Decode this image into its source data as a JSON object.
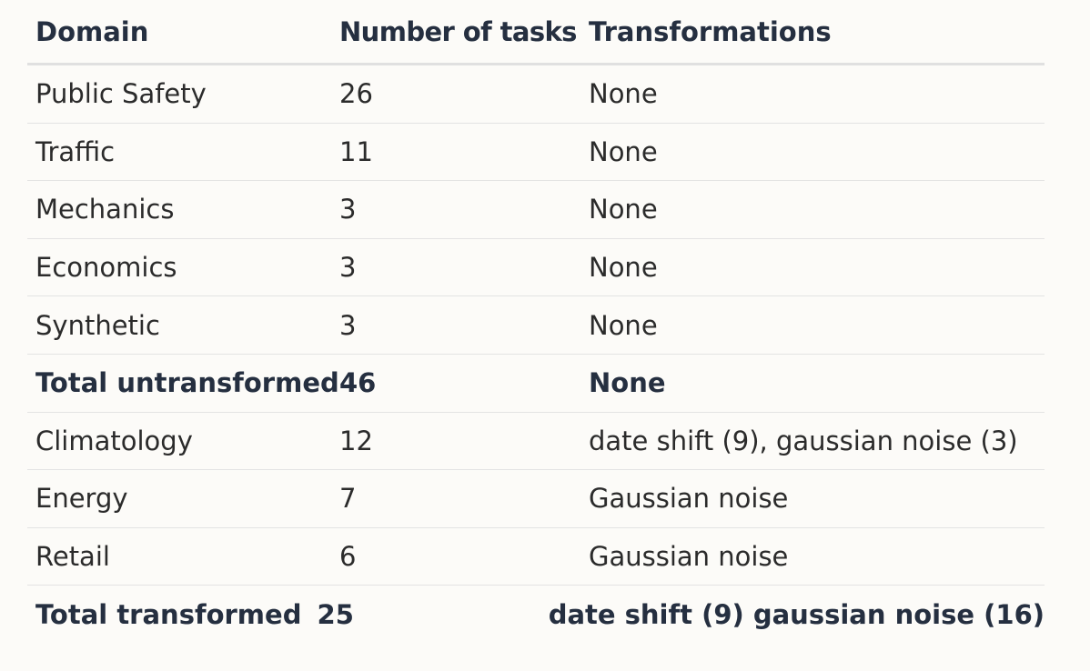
{
  "table": {
    "headers": {
      "domain": "Domain",
      "tasks": "Number of tasks",
      "transformations": "Transformations"
    },
    "rows": [
      {
        "domain": "Public Safety",
        "tasks": "26",
        "transformations": "None"
      },
      {
        "domain": "Traffic",
        "tasks": "11",
        "transformations": "None"
      },
      {
        "domain": "Mechanics",
        "tasks": "3",
        "transformations": "None"
      },
      {
        "domain": "Economics",
        "tasks": "3",
        "transformations": "None"
      },
      {
        "domain": "Synthetic",
        "tasks": "3",
        "transformations": "None"
      },
      {
        "domain": "Total untransformed",
        "tasks": "46",
        "transformations": "None"
      },
      {
        "domain": "Climatology",
        "tasks": "12",
        "transformations": "date shift (9), gaussian noise (3)"
      },
      {
        "domain": "Energy",
        "tasks": "7",
        "transformations": "Gaussian noise"
      },
      {
        "domain": "Retail",
        "tasks": "6",
        "transformations": "Gaussian noise"
      },
      {
        "domain": "Total transformed",
        "tasks": "25",
        "transformations": "date shift (9) gaussian noise (16)"
      }
    ]
  }
}
